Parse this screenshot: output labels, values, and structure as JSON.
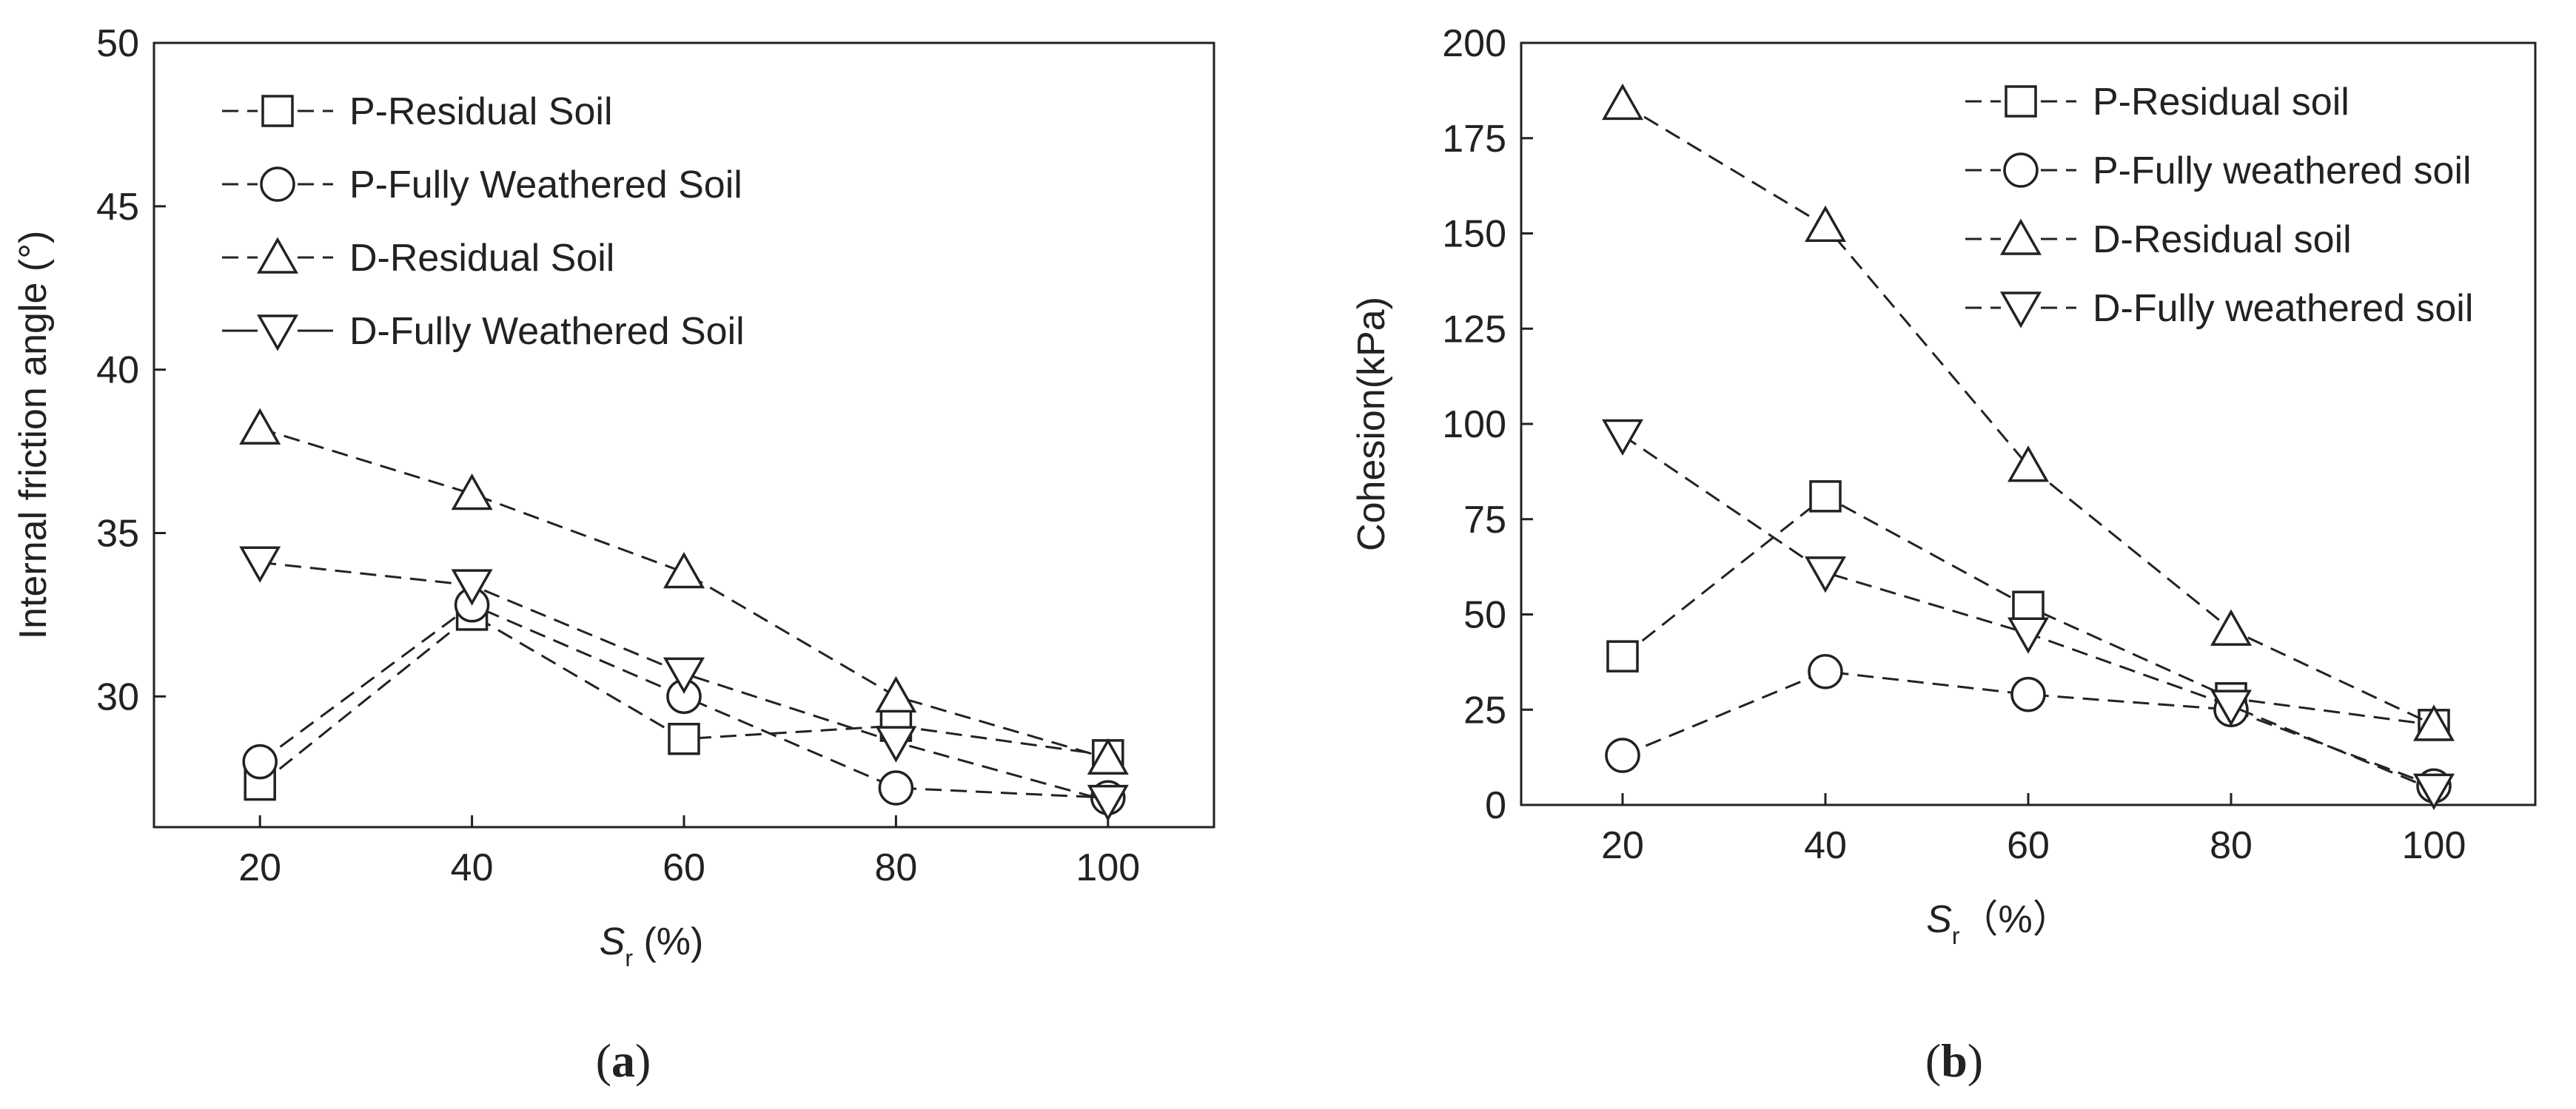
{
  "chart_data": [
    {
      "type": "line",
      "ylabel": "Internal friction angle (°)",
      "xlabel_main": "S",
      "xlabel_sub": "r",
      "xlabel_rest": " (%)",
      "caption_open": "(",
      "caption_letter": "a",
      "caption_close": ")",
      "x": [
        20,
        40,
        60,
        80,
        100
      ],
      "xlim": [
        10,
        110
      ],
      "ylim": [
        26,
        50
      ],
      "xticks": [
        "20",
        "40",
        "60",
        "80",
        "100"
      ],
      "yticks": [
        "30",
        "35",
        "40",
        "45",
        "50"
      ],
      "legend_position": "top-left",
      "grid": false,
      "series": [
        {
          "name": "P-Residual Soil",
          "marker": "square",
          "values": [
            27.3,
            32.5,
            28.7,
            29.1,
            28.2
          ]
        },
        {
          "name": "P-Fully Weathered Soil",
          "marker": "circle",
          "values": [
            28.0,
            32.8,
            30.0,
            27.2,
            26.9
          ]
        },
        {
          "name": "D-Residual Soil",
          "marker": "triangle-up",
          "values": [
            38.2,
            36.2,
            33.8,
            30.0,
            28.1
          ]
        },
        {
          "name": "D-Fully Weathered Soil",
          "marker": "triangle-down",
          "values": [
            34.1,
            33.4,
            30.7,
            28.6,
            26.8
          ]
        }
      ]
    },
    {
      "type": "line",
      "ylabel": "Cohesion(kPa)",
      "xlabel_main": "S",
      "xlabel_sub": "r",
      "xlabel_rest": "（%）",
      "caption_open": "(",
      "caption_letter": "b",
      "caption_close": ")",
      "x": [
        20,
        40,
        60,
        80,
        100
      ],
      "xlim": [
        10,
        110
      ],
      "ylim": [
        0,
        200
      ],
      "xticks": [
        "20",
        "40",
        "60",
        "80",
        "100"
      ],
      "yticks": [
        "0",
        "25",
        "50",
        "75",
        "100",
        "125",
        "150",
        "175",
        "200"
      ],
      "legend_position": "top-right",
      "grid": false,
      "series": [
        {
          "name": "P-Residual soil",
          "marker": "square",
          "values": [
            39,
            81,
            52,
            28,
            21
          ]
        },
        {
          "name": "P-Fully weathered soil",
          "marker": "circle",
          "values": [
            13,
            35,
            29,
            25,
            5
          ]
        },
        {
          "name": "D-Residual soil",
          "marker": "triangle-up",
          "values": [
            184,
            152,
            89,
            46,
            21
          ]
        },
        {
          "name": "D-Fully weathered soil",
          "marker": "triangle-down",
          "values": [
            97,
            61,
            45,
            26,
            4
          ]
        }
      ]
    }
  ]
}
